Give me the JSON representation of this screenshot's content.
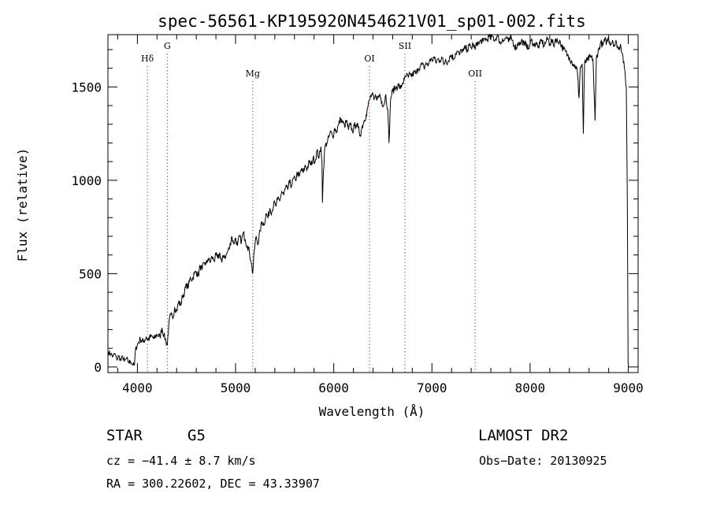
{
  "chart_data": {
    "type": "line",
    "title": "spec-56561-KP195920N454621V01_sp01-002.fits",
    "xlabel": "Wavelength (Å)",
    "ylabel": "Flux (relative)",
    "xlim": [
      3700,
      9100
    ],
    "ylim": [
      -30,
      1780
    ],
    "xticks": [
      4000,
      5000,
      6000,
      7000,
      8000,
      9000
    ],
    "yticks": [
      0,
      500,
      1000,
      1500
    ],
    "grid": false,
    "legend": "none",
    "line_color": "#000000",
    "marker_color": "#b22222",
    "spectral_lines": [
      {
        "name": "Hδ",
        "wavelength": 4102
      },
      {
        "name": "G",
        "wavelength": 4305
      },
      {
        "name": "Mg",
        "wavelength": 5175
      },
      {
        "name": "OI",
        "wavelength": 6364
      },
      {
        "name": "SII",
        "wavelength": 6725
      },
      {
        "name": "OII",
        "wavelength": 7440
      }
    ],
    "spectrum": [
      [
        3705,
        80
      ],
      [
        3730,
        70
      ],
      [
        3750,
        55
      ],
      [
        3770,
        72
      ],
      [
        3790,
        40
      ],
      [
        3810,
        60
      ],
      [
        3830,
        35
      ],
      [
        3850,
        55
      ],
      [
        3870,
        30
      ],
      [
        3890,
        45
      ],
      [
        3910,
        25
      ],
      [
        3930,
        30
      ],
      [
        3950,
        15
      ],
      [
        3970,
        10
      ],
      [
        3980,
        90
      ],
      [
        4000,
        120
      ],
      [
        4030,
        150
      ],
      [
        4060,
        135
      ],
      [
        4090,
        160
      ],
      [
        4110,
        145
      ],
      [
        4140,
        165
      ],
      [
        4170,
        150
      ],
      [
        4200,
        175
      ],
      [
        4230,
        160
      ],
      [
        4250,
        210
      ],
      [
        4270,
        170
      ],
      [
        4290,
        140
      ],
      [
        4305,
        120
      ],
      [
        4320,
        230
      ],
      [
        4340,
        280
      ],
      [
        4360,
        260
      ],
      [
        4380,
        320
      ],
      [
        4400,
        300
      ],
      [
        4420,
        350
      ],
      [
        4440,
        330
      ],
      [
        4460,
        380
      ],
      [
        4480,
        400
      ],
      [
        4500,
        440
      ],
      [
        4520,
        430
      ],
      [
        4540,
        480
      ],
      [
        4560,
        470
      ],
      [
        4580,
        500
      ],
      [
        4600,
        510
      ],
      [
        4620,
        490
      ],
      [
        4640,
        540
      ],
      [
        4660,
        520
      ],
      [
        4680,
        560
      ],
      [
        4700,
        550
      ],
      [
        4720,
        580
      ],
      [
        4740,
        560
      ],
      [
        4760,
        590
      ],
      [
        4780,
        570
      ],
      [
        4800,
        600
      ],
      [
        4820,
        580
      ],
      [
        4840,
        610
      ],
      [
        4860,
        560
      ],
      [
        4880,
        600
      ],
      [
        4900,
        590
      ],
      [
        4920,
        620
      ],
      [
        4940,
        640
      ],
      [
        4960,
        700
      ],
      [
        4980,
        660
      ],
      [
        5000,
        690
      ],
      [
        5020,
        650
      ],
      [
        5040,
        700
      ],
      [
        5060,
        670
      ],
      [
        5080,
        720
      ],
      [
        5100,
        680
      ],
      [
        5120,
        650
      ],
      [
        5140,
        620
      ],
      [
        5160,
        560
      ],
      [
        5175,
        500
      ],
      [
        5190,
        620
      ],
      [
        5210,
        700
      ],
      [
        5230,
        660
      ],
      [
        5250,
        730
      ],
      [
        5270,
        780
      ],
      [
        5290,
        760
      ],
      [
        5310,
        820
      ],
      [
        5330,
        800
      ],
      [
        5350,
        850
      ],
      [
        5370,
        830
      ],
      [
        5390,
        880
      ],
      [
        5410,
        860
      ],
      [
        5430,
        900
      ],
      [
        5450,
        890
      ],
      [
        5470,
        940
      ],
      [
        5490,
        920
      ],
      [
        5510,
        960
      ],
      [
        5530,
        950
      ],
      [
        5550,
        990
      ],
      [
        5570,
        970
      ],
      [
        5590,
        1010
      ],
      [
        5610,
        1000
      ],
      [
        5630,
        1040
      ],
      [
        5650,
        1020
      ],
      [
        5670,
        1060
      ],
      [
        5690,
        1040
      ],
      [
        5710,
        1080
      ],
      [
        5730,
        1060
      ],
      [
        5750,
        1100
      ],
      [
        5770,
        1080
      ],
      [
        5790,
        1120
      ],
      [
        5810,
        1100
      ],
      [
        5830,
        1160
      ],
      [
        5850,
        1120
      ],
      [
        5870,
        1180
      ],
      [
        5880,
        1100
      ],
      [
        5885,
        880
      ],
      [
        5895,
        1050
      ],
      [
        5910,
        1180
      ],
      [
        5930,
        1200
      ],
      [
        5950,
        1230
      ],
      [
        5970,
        1260
      ],
      [
        5990,
        1230
      ],
      [
        6010,
        1280
      ],
      [
        6030,
        1260
      ],
      [
        6050,
        1300
      ],
      [
        6070,
        1330
      ],
      [
        6090,
        1310
      ],
      [
        6110,
        1290
      ],
      [
        6130,
        1320
      ],
      [
        6150,
        1270
      ],
      [
        6170,
        1300
      ],
      [
        6190,
        1260
      ],
      [
        6210,
        1290
      ],
      [
        6230,
        1300
      ],
      [
        6250,
        1280
      ],
      [
        6270,
        1240
      ],
      [
        6290,
        1290
      ],
      [
        6310,
        1320
      ],
      [
        6330,
        1350
      ],
      [
        6350,
        1400
      ],
      [
        6370,
        1440
      ],
      [
        6390,
        1460
      ],
      [
        6410,
        1430
      ],
      [
        6430,
        1450
      ],
      [
        6450,
        1440
      ],
      [
        6470,
        1460
      ],
      [
        6490,
        1420
      ],
      [
        6510,
        1400
      ],
      [
        6530,
        1460
      ],
      [
        6550,
        1380
      ],
      [
        6563,
        1200
      ],
      [
        6580,
        1440
      ],
      [
        6600,
        1480
      ],
      [
        6620,
        1490
      ],
      [
        6640,
        1500
      ],
      [
        6660,
        1510
      ],
      [
        6680,
        1490
      ],
      [
        6700,
        1520
      ],
      [
        6720,
        1540
      ],
      [
        6740,
        1560
      ],
      [
        6760,
        1550
      ],
      [
        6780,
        1570
      ],
      [
        6800,
        1560
      ],
      [
        6820,
        1580
      ],
      [
        6840,
        1570
      ],
      [
        6860,
        1600
      ],
      [
        6880,
        1610
      ],
      [
        6900,
        1620
      ],
      [
        6920,
        1600
      ],
      [
        6940,
        1630
      ],
      [
        6960,
        1610
      ],
      [
        6980,
        1650
      ],
      [
        7000,
        1640
      ],
      [
        7020,
        1660
      ],
      [
        7040,
        1630
      ],
      [
        7060,
        1650
      ],
      [
        7080,
        1640
      ],
      [
        7100,
        1660
      ],
      [
        7120,
        1620
      ],
      [
        7140,
        1650
      ],
      [
        7160,
        1630
      ],
      [
        7180,
        1660
      ],
      [
        7200,
        1670
      ],
      [
        7220,
        1650
      ],
      [
        7240,
        1680
      ],
      [
        7260,
        1690
      ],
      [
        7280,
        1670
      ],
      [
        7300,
        1700
      ],
      [
        7320,
        1690
      ],
      [
        7340,
        1710
      ],
      [
        7360,
        1700
      ],
      [
        7380,
        1720
      ],
      [
        7400,
        1710
      ],
      [
        7420,
        1730
      ],
      [
        7440,
        1700
      ],
      [
        7460,
        1740
      ],
      [
        7480,
        1730
      ],
      [
        7500,
        1750
      ],
      [
        7520,
        1740
      ],
      [
        7540,
        1760
      ],
      [
        7560,
        1750
      ],
      [
        7580,
        1770
      ],
      [
        7600,
        1760
      ],
      [
        7620,
        1770
      ],
      [
        7640,
        1750
      ],
      [
        7660,
        1770
      ],
      [
        7680,
        1760
      ],
      [
        7700,
        1730
      ],
      [
        7720,
        1760
      ],
      [
        7740,
        1750
      ],
      [
        7760,
        1770
      ],
      [
        7780,
        1740
      ],
      [
        7800,
        1760
      ],
      [
        7820,
        1750
      ],
      [
        7840,
        1720
      ],
      [
        7860,
        1710
      ],
      [
        7880,
        1740
      ],
      [
        7900,
        1730
      ],
      [
        7920,
        1750
      ],
      [
        7940,
        1720
      ],
      [
        7960,
        1740
      ],
      [
        7980,
        1700
      ],
      [
        8000,
        1730
      ],
      [
        8020,
        1750
      ],
      [
        8040,
        1720
      ],
      [
        8060,
        1740
      ],
      [
        8080,
        1710
      ],
      [
        8100,
        1730
      ],
      [
        8120,
        1750
      ],
      [
        8140,
        1720
      ],
      [
        8160,
        1740
      ],
      [
        8180,
        1760
      ],
      [
        8200,
        1730
      ],
      [
        8220,
        1750
      ],
      [
        8240,
        1720
      ],
      [
        8260,
        1760
      ],
      [
        8280,
        1740
      ],
      [
        8300,
        1750
      ],
      [
        8320,
        1720
      ],
      [
        8340,
        1700
      ],
      [
        8360,
        1690
      ],
      [
        8380,
        1670
      ],
      [
        8400,
        1660
      ],
      [
        8420,
        1640
      ],
      [
        8440,
        1620
      ],
      [
        8460,
        1610
      ],
      [
        8480,
        1590
      ],
      [
        8498,
        1440
      ],
      [
        8510,
        1600
      ],
      [
        8530,
        1620
      ],
      [
        8542,
        1250
      ],
      [
        8555,
        1630
      ],
      [
        8580,
        1640
      ],
      [
        8610,
        1660
      ],
      [
        8640,
        1650
      ],
      [
        8662,
        1320
      ],
      [
        8675,
        1660
      ],
      [
        8700,
        1700
      ],
      [
        8720,
        1740
      ],
      [
        8740,
        1720
      ],
      [
        8760,
        1750
      ],
      [
        8780,
        1740
      ],
      [
        8800,
        1760
      ],
      [
        8820,
        1730
      ],
      [
        8840,
        1750
      ],
      [
        8860,
        1720
      ],
      [
        8880,
        1740
      ],
      [
        8900,
        1700
      ],
      [
        8920,
        1730
      ],
      [
        8940,
        1680
      ],
      [
        8960,
        1600
      ],
      [
        8980,
        1500
      ],
      [
        8990,
        900
      ],
      [
        8998,
        20
      ]
    ]
  },
  "info": {
    "object_class": "STAR",
    "subclass": "G5",
    "survey": "LAMOST DR2",
    "redshift_text": "cz = −41.4 ± 8.7 km/s",
    "obs_date_text": "Obs−Date: 20130925",
    "coords_text": "RA = 300.22602, DEC =  43.33907"
  }
}
